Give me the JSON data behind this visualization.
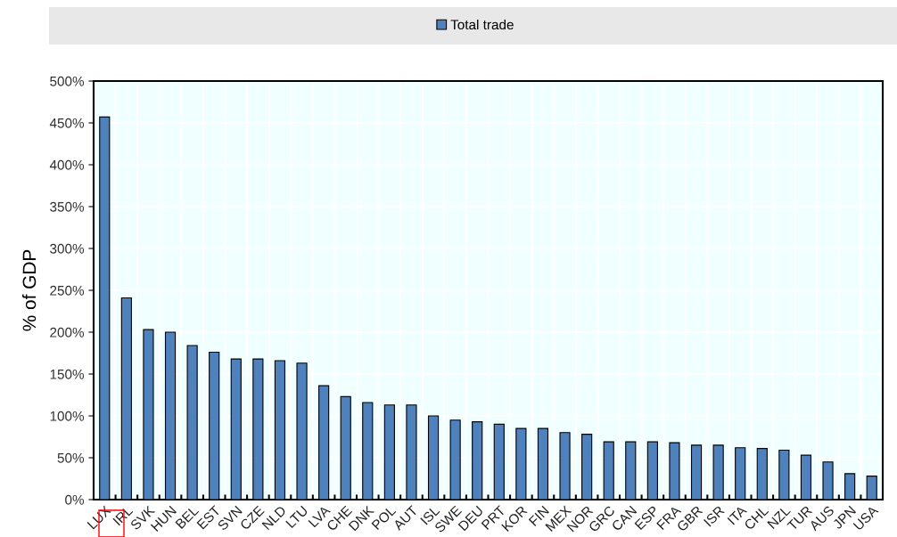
{
  "chart_data": {
    "type": "bar",
    "ylabel": "% of GDP",
    "categories": [
      "LUX",
      "IRL",
      "SVK",
      "HUN",
      "BEL",
      "EST",
      "SVN",
      "CZE",
      "NLD",
      "LTU",
      "LVA",
      "CHE",
      "DNK",
      "POL",
      "AUT",
      "ISL",
      "SWE",
      "DEU",
      "PRT",
      "KOR",
      "FIN",
      "MEX",
      "NOR",
      "GRC",
      "CAN",
      "ESP",
      "FRA",
      "GBR",
      "ISR",
      "ITA",
      "CHL",
      "NZL",
      "TUR",
      "AUS",
      "JPN",
      "USA"
    ],
    "series": [
      {
        "name": "Total trade",
        "color": "#4f81bd",
        "values": [
          457,
          241,
          203,
          200,
          184,
          176,
          168,
          168,
          166,
          163,
          136,
          123,
          116,
          113,
          113,
          100,
          95,
          93,
          90,
          85,
          85,
          80,
          78,
          69,
          69,
          69,
          68,
          65,
          65,
          62,
          61,
          59,
          53,
          45,
          31,
          28
        ]
      }
    ],
    "ylim": [
      0,
      500
    ],
    "yticks": [
      {
        "value": 0,
        "label": "0%"
      },
      {
        "value": 50,
        "label": "50%"
      },
      {
        "value": 100,
        "label": "100%"
      },
      {
        "value": 150,
        "label": "150%"
      },
      {
        "value": 200,
        "label": "200%"
      },
      {
        "value": 250,
        "label": "250%"
      },
      {
        "value": 300,
        "label": "300%"
      },
      {
        "value": 350,
        "label": "350%"
      },
      {
        "value": 400,
        "label": "400%"
      },
      {
        "value": 450,
        "label": "450%"
      },
      {
        "value": 500,
        "label": "500%"
      }
    ],
    "grid": true,
    "legend": "top"
  }
}
